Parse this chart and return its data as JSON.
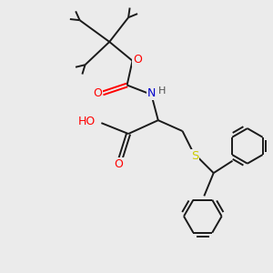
{
  "bg_color": "#ebebeb",
  "bond_color": "#1a1a1a",
  "atom_colors": {
    "O": "#ff0000",
    "N": "#0000cc",
    "S": "#cccc00",
    "C": "#1a1a1a",
    "H": "#505050"
  },
  "figsize": [
    3.0,
    3.0
  ],
  "dpi": 100,
  "xlim": [
    0,
    10
  ],
  "ylim": [
    0,
    10
  ]
}
